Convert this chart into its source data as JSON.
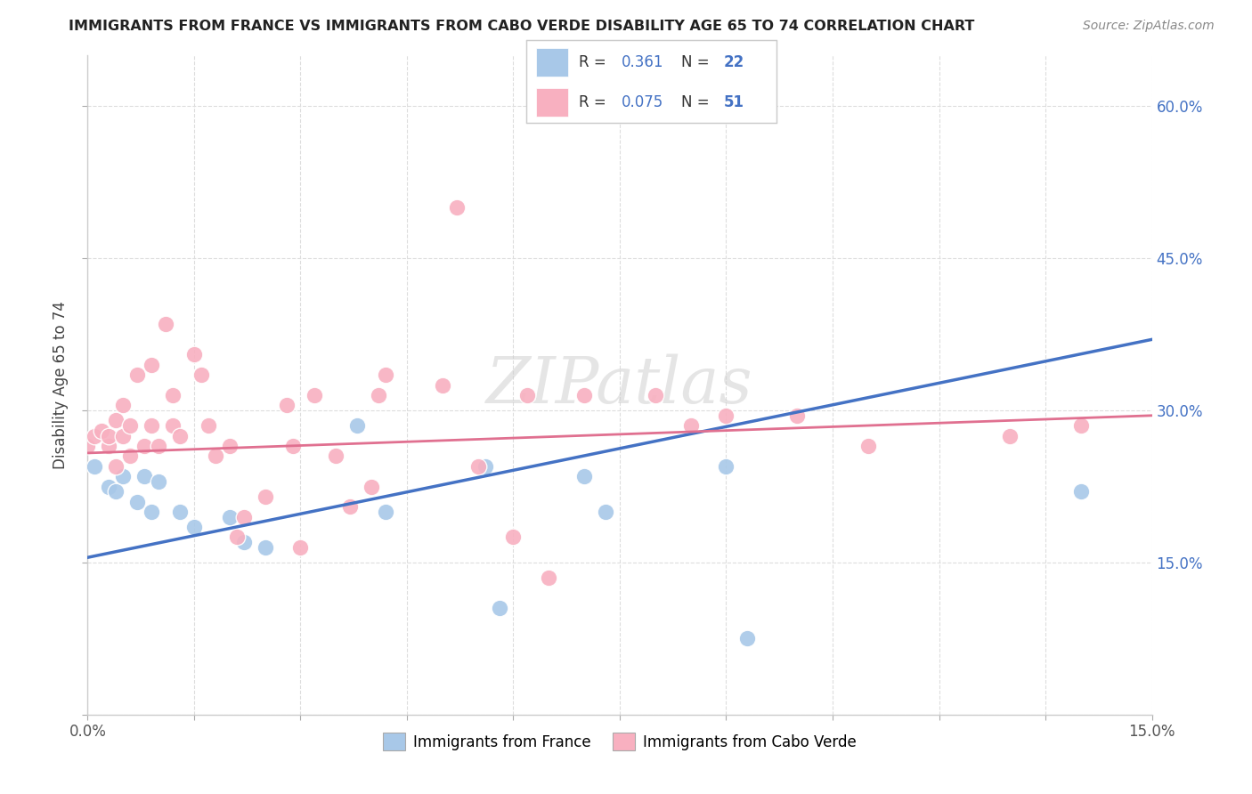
{
  "title": "IMMIGRANTS FROM FRANCE VS IMMIGRANTS FROM CABO VERDE DISABILITY AGE 65 TO 74 CORRELATION CHART",
  "source": "Source: ZipAtlas.com",
  "ylabel": "Disability Age 65 to 74",
  "xlim": [
    0.0,
    0.15
  ],
  "ylim": [
    0.0,
    0.65
  ],
  "xticks": [
    0.0,
    0.015,
    0.03,
    0.045,
    0.06,
    0.075,
    0.09,
    0.105,
    0.12,
    0.135,
    0.15
  ],
  "xticklabels_edge": {
    "0.0": "0.0%",
    "0.15": "15.0%"
  },
  "yticks": [
    0.0,
    0.15,
    0.3,
    0.45,
    0.6
  ],
  "yticklabels": [
    "",
    "15.0%",
    "30.0%",
    "45.0%",
    "60.0%"
  ],
  "background_color": "#ffffff",
  "grid_color": "#dddddd",
  "france_color": "#a8c8e8",
  "caboverde_color": "#f8b0c0",
  "france_line_color": "#4472c4",
  "caboverde_line_color": "#e07090",
  "france_R": 0.361,
  "france_N": 22,
  "caboverde_R": 0.075,
  "caboverde_N": 51,
  "france_scatter_x": [
    0.001,
    0.003,
    0.004,
    0.005,
    0.007,
    0.008,
    0.009,
    0.01,
    0.013,
    0.015,
    0.02,
    0.022,
    0.025,
    0.038,
    0.042,
    0.056,
    0.058,
    0.07,
    0.073,
    0.09,
    0.093,
    0.14
  ],
  "france_scatter_y": [
    0.245,
    0.225,
    0.22,
    0.235,
    0.21,
    0.235,
    0.2,
    0.23,
    0.2,
    0.185,
    0.195,
    0.17,
    0.165,
    0.285,
    0.2,
    0.245,
    0.105,
    0.235,
    0.2,
    0.245,
    0.075,
    0.22
  ],
  "caboverde_scatter_x": [
    0.0,
    0.001,
    0.002,
    0.003,
    0.003,
    0.004,
    0.004,
    0.005,
    0.005,
    0.006,
    0.006,
    0.007,
    0.008,
    0.009,
    0.009,
    0.01,
    0.011,
    0.012,
    0.012,
    0.013,
    0.015,
    0.016,
    0.017,
    0.018,
    0.02,
    0.021,
    0.022,
    0.025,
    0.028,
    0.029,
    0.03,
    0.032,
    0.035,
    0.037,
    0.04,
    0.041,
    0.042,
    0.05,
    0.052,
    0.055,
    0.06,
    0.062,
    0.065,
    0.07,
    0.08,
    0.085,
    0.09,
    0.1,
    0.11,
    0.13,
    0.14
  ],
  "caboverde_scatter_y": [
    0.265,
    0.275,
    0.28,
    0.265,
    0.275,
    0.29,
    0.245,
    0.305,
    0.275,
    0.285,
    0.255,
    0.335,
    0.265,
    0.345,
    0.285,
    0.265,
    0.385,
    0.285,
    0.315,
    0.275,
    0.355,
    0.335,
    0.285,
    0.255,
    0.265,
    0.175,
    0.195,
    0.215,
    0.305,
    0.265,
    0.165,
    0.315,
    0.255,
    0.205,
    0.225,
    0.315,
    0.335,
    0.325,
    0.5,
    0.245,
    0.175,
    0.315,
    0.135,
    0.315,
    0.315,
    0.285,
    0.295,
    0.295,
    0.265,
    0.275,
    0.285
  ],
  "watermark": "ZIPatlas",
  "france_line_x": [
    0.0,
    0.15
  ],
  "france_line_y": [
    0.155,
    0.37
  ],
  "caboverde_line_x": [
    0.0,
    0.15
  ],
  "caboverde_line_y": [
    0.258,
    0.295
  ]
}
